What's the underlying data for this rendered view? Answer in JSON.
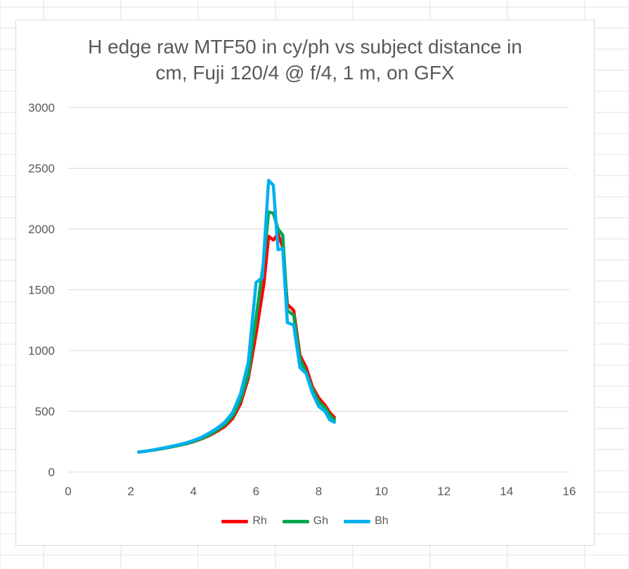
{
  "chart_data": {
    "type": "line",
    "title_lines": [
      "H edge raw MTF50 in cy/ph vs subject distance in",
      "cm, Fuji 120/4 @ f/4, 1 m, on GFX"
    ],
    "xlim": [
      0,
      16
    ],
    "ylim": [
      0,
      3000
    ],
    "x_ticks": [
      0,
      2,
      4,
      6,
      8,
      10,
      12,
      14,
      16
    ],
    "y_ticks": [
      0,
      500,
      1000,
      1500,
      2000,
      2500,
      3000
    ],
    "grid": "horizontal",
    "legend_position": "bottom",
    "series": [
      {
        "name": "Rh",
        "color": "#ff0000",
        "points": [
          [
            2.25,
            165
          ],
          [
            2.5,
            172
          ],
          [
            2.75,
            182
          ],
          [
            3.0,
            193
          ],
          [
            3.25,
            205
          ],
          [
            3.5,
            218
          ],
          [
            3.75,
            232
          ],
          [
            4.0,
            250
          ],
          [
            4.25,
            272
          ],
          [
            4.5,
            300
          ],
          [
            4.75,
            335
          ],
          [
            5.0,
            375
          ],
          [
            5.25,
            440
          ],
          [
            5.5,
            560
          ],
          [
            5.75,
            770
          ],
          [
            6.0,
            1140
          ],
          [
            6.25,
            1550
          ],
          [
            6.4,
            1940
          ],
          [
            6.55,
            1910
          ],
          [
            6.7,
            1960
          ],
          [
            6.85,
            1850
          ],
          [
            7.0,
            1380
          ],
          [
            7.2,
            1330
          ],
          [
            7.4,
            960
          ],
          [
            7.6,
            860
          ],
          [
            7.8,
            700
          ],
          [
            8.0,
            610
          ],
          [
            8.2,
            550
          ],
          [
            8.35,
            490
          ],
          [
            8.5,
            450
          ]
        ]
      },
      {
        "name": "Gh",
        "color": "#00a64f",
        "points": [
          [
            2.25,
            165
          ],
          [
            2.5,
            172
          ],
          [
            2.75,
            182
          ],
          [
            3.0,
            193
          ],
          [
            3.25,
            205
          ],
          [
            3.5,
            218
          ],
          [
            3.75,
            232
          ],
          [
            4.0,
            252
          ],
          [
            4.25,
            275
          ],
          [
            4.5,
            305
          ],
          [
            4.75,
            345
          ],
          [
            5.0,
            390
          ],
          [
            5.25,
            460
          ],
          [
            5.5,
            590
          ],
          [
            5.75,
            800
          ],
          [
            6.0,
            1270
          ],
          [
            6.25,
            1750
          ],
          [
            6.4,
            2140
          ],
          [
            6.55,
            2130
          ],
          [
            6.7,
            2000
          ],
          [
            6.85,
            1950
          ],
          [
            7.0,
            1330
          ],
          [
            7.2,
            1290
          ],
          [
            7.4,
            930
          ],
          [
            7.6,
            820
          ],
          [
            7.8,
            680
          ],
          [
            8.0,
            580
          ],
          [
            8.2,
            530
          ],
          [
            8.35,
            470
          ],
          [
            8.5,
            430
          ]
        ]
      },
      {
        "name": "Bh",
        "color": "#00b0f0",
        "points": [
          [
            2.25,
            165
          ],
          [
            2.5,
            173
          ],
          [
            2.75,
            184
          ],
          [
            3.0,
            196
          ],
          [
            3.25,
            209
          ],
          [
            3.5,
            223
          ],
          [
            3.75,
            239
          ],
          [
            4.0,
            260
          ],
          [
            4.25,
            285
          ],
          [
            4.5,
            320
          ],
          [
            4.75,
            360
          ],
          [
            5.0,
            410
          ],
          [
            5.25,
            490
          ],
          [
            5.5,
            640
          ],
          [
            5.75,
            900
          ],
          [
            6.0,
            1560
          ],
          [
            6.2,
            1600
          ],
          [
            6.4,
            2400
          ],
          [
            6.55,
            2360
          ],
          [
            6.7,
            1830
          ],
          [
            6.85,
            1840
          ],
          [
            7.0,
            1230
          ],
          [
            7.2,
            1210
          ],
          [
            7.4,
            860
          ],
          [
            7.6,
            810
          ],
          [
            7.8,
            650
          ],
          [
            8.0,
            540
          ],
          [
            8.2,
            500
          ],
          [
            8.35,
            430
          ],
          [
            8.5,
            410
          ]
        ]
      }
    ]
  }
}
